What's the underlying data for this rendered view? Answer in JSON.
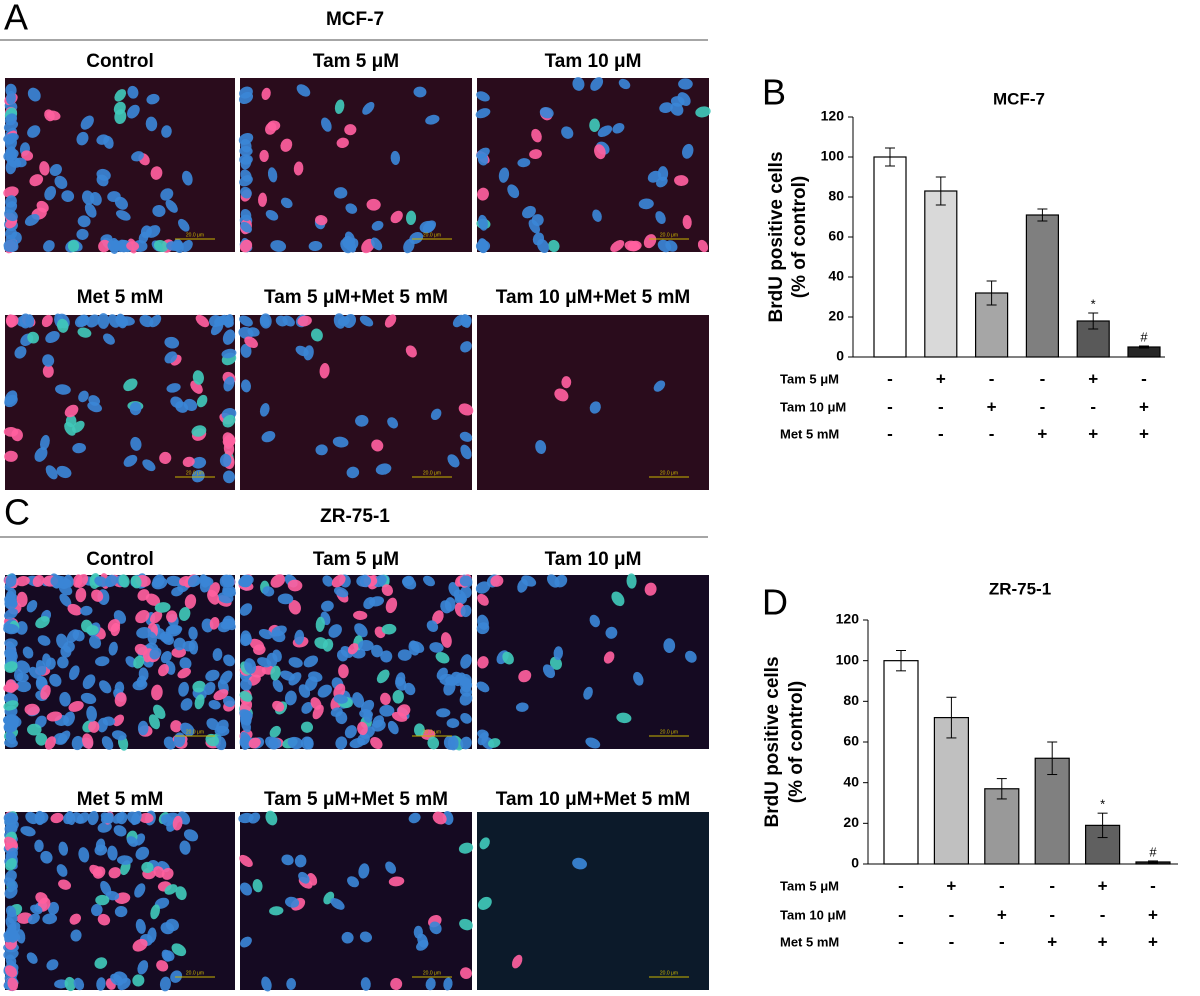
{
  "sections": [
    {
      "panel_label": "A",
      "title": "MCF-7",
      "scale_bar": "20.0 μm",
      "images": [
        "Control",
        "Tam 5 μM",
        "Tam 10 μM",
        "Met 5 mM",
        "Tam 5 μM+Met 5 mM",
        "Tam 10 μM+Met 5 mM"
      ]
    },
    {
      "panel_label": "C",
      "title": "ZR-75-1",
      "scale_bar": "20.0 μm",
      "images": [
        "Control",
        "Tam 5 μM",
        "Tam 10 μM",
        "Met 5 mM",
        "Tam 5 μM+Met 5 mM",
        "Tam 10 μM+Met 5 mM"
      ]
    }
  ],
  "chart_data": [
    {
      "type": "bar",
      "panel_label": "B",
      "title": "MCF-7",
      "y_label": [
        "BrdU positive cells",
        "(% of control)"
      ],
      "values": [
        100,
        83,
        32,
        71,
        18,
        5
      ],
      "errors": [
        4.5,
        7,
        6,
        3,
        4,
        0.5
      ],
      "colors": [
        "#ffffff",
        "#d9d9d9",
        "#a6a6a6",
        "#7f7f7f",
        "#595959",
        "#262626"
      ],
      "value_annotations": [
        null,
        null,
        null,
        null,
        "*",
        "#"
      ],
      "ylim": [
        0,
        120
      ],
      "yticks": [
        0,
        20,
        40,
        60,
        80,
        100,
        120
      ],
      "rows": [
        {
          "label": "Tam 5 μM",
          "marks": [
            "-",
            "+",
            "-",
            "-",
            "+",
            "-"
          ]
        },
        {
          "label": "Tam 10 μM",
          "marks": [
            "-",
            "-",
            "+",
            "-",
            "-",
            "+"
          ]
        },
        {
          "label": "Met 5 mM",
          "marks": [
            "-",
            "-",
            "-",
            "+",
            "+",
            "+"
          ]
        }
      ]
    },
    {
      "type": "bar",
      "panel_label": "D",
      "title": "ZR-75-1",
      "y_label": [
        "BrdU positive cells",
        "(% of control)"
      ],
      "values": [
        100,
        72,
        37,
        52,
        19,
        1
      ],
      "errors": [
        5,
        10,
        5,
        8,
        6,
        0.5
      ],
      "colors": [
        "#ffffff",
        "#c0c0c0",
        "#999999",
        "#808080",
        "#606060",
        "#333333"
      ],
      "value_annotations": [
        null,
        null,
        null,
        null,
        "*",
        "#"
      ],
      "ylim": [
        0,
        120
      ],
      "yticks": [
        0,
        20,
        40,
        60,
        80,
        100,
        120
      ],
      "rows": [
        {
          "label": "Tam 5 μM",
          "marks": [
            "-",
            "+",
            "-",
            "-",
            "+",
            "-"
          ]
        },
        {
          "label": "Tam 10 μM",
          "marks": [
            "-",
            "-",
            "+",
            "-",
            "-",
            "+"
          ]
        },
        {
          "label": "Met 5 mM",
          "marks": [
            "-",
            "-",
            "-",
            "+",
            "+",
            "+"
          ]
        }
      ]
    }
  ]
}
